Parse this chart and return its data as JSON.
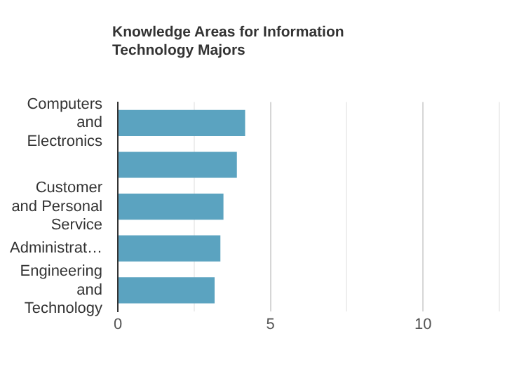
{
  "chart_data": {
    "type": "bar",
    "orientation": "horizontal",
    "title": "Knowledge Areas for Information Technology Majors",
    "categories": [
      "Computers and Electronics",
      null,
      "Customer and Personal Service",
      "Administrat…",
      "Engineering and Technology"
    ],
    "values": [
      4.17,
      3.9,
      3.46,
      3.36,
      3.17
    ],
    "color": "#5ba3c0",
    "xlim": [
      0,
      12.5
    ],
    "xticks": [
      0,
      {
        "value": 2.5,
        "label": null
      },
      5,
      {
        "value": 7.5,
        "label": null
      },
      10,
      {
        "value": 12.5,
        "label": null
      }
    ],
    "grid": "x",
    "legend": false
  }
}
